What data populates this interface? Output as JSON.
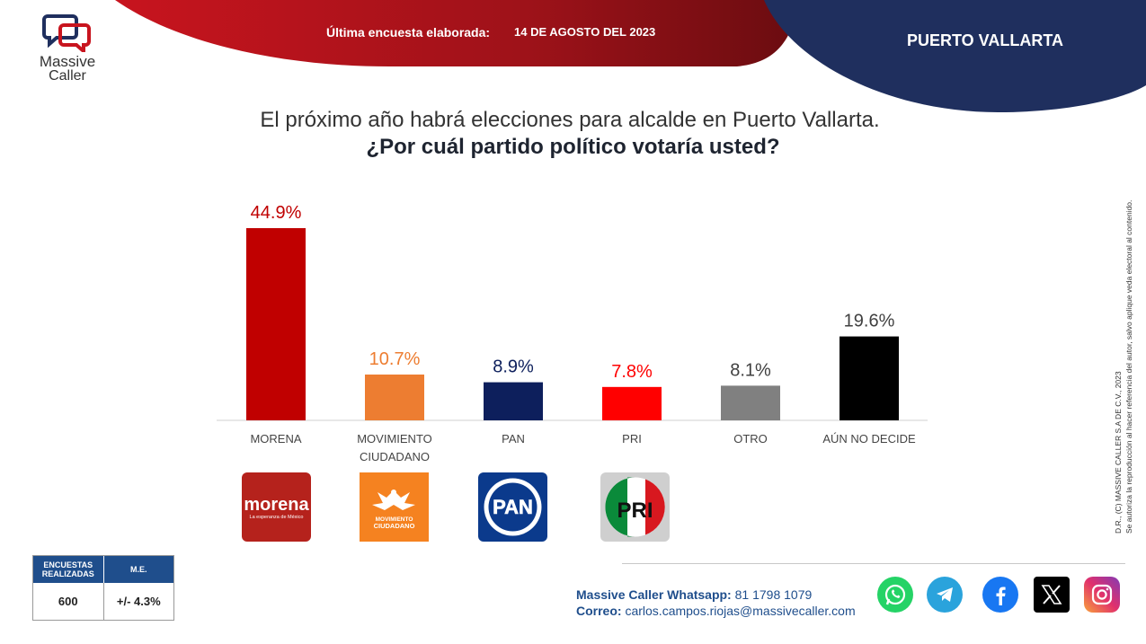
{
  "header": {
    "brand_line1": "Massive",
    "brand_line2": "Caller",
    "survey_label": "Última encuesta elaborada:",
    "survey_date": "14 DE AGOSTO DEL 2023",
    "city": "PUERTO VALLARTA",
    "colors": {
      "red": "#b4141c",
      "darkred": "#7a0e14",
      "navy": "#1f2f5e"
    }
  },
  "question": {
    "line1": "El próximo año habrá elecciones para alcalde en Puerto Vallarta.",
    "line2": "¿Por cuál partido político votaría usted?"
  },
  "chart_data": {
    "type": "bar",
    "categories": [
      "MORENA",
      "MOVIMIENTO CIUDADANO",
      "PAN",
      "PRI",
      "OTRO",
      "AÚN NO DECIDE"
    ],
    "category_lines": [
      [
        "MORENA"
      ],
      [
        "MOVIMIENTO",
        "CIUDADANO"
      ],
      [
        "PAN"
      ],
      [
        "PRI"
      ],
      [
        "OTRO"
      ],
      [
        "AÚN NO DECIDE"
      ]
    ],
    "values": [
      44.9,
      10.7,
      8.9,
      7.8,
      8.1,
      19.6
    ],
    "value_labels": [
      "44.9%",
      "10.7%",
      "8.9%",
      "7.8%",
      "8.1%",
      "19.6%"
    ],
    "colors": [
      "#c00000",
      "#ed7d31",
      "#0d1f5c",
      "#ff0000",
      "#808080",
      "#000000"
    ],
    "label_colors": [
      "#c00000",
      "#ed7d31",
      "#0d1f5c",
      "#ff0000",
      "#404040",
      "#404040"
    ],
    "ylim": [
      0,
      44.9
    ],
    "grid": false,
    "legend": "none"
  },
  "party_logos": [
    {
      "icon": "morena-logo",
      "name": "morena",
      "sub": "La esperanza de México",
      "color": "#b5221c"
    },
    {
      "icon": "movimiento-ciudadano-logo",
      "name": "MOVIMIENTO CIUDADANO",
      "color": "#f58220"
    },
    {
      "icon": "pan-logo",
      "name": "PAN",
      "color": "#0b3a8c"
    },
    {
      "icon": "pri-logo",
      "name": "PRI",
      "color": "#cccccc"
    }
  ],
  "stats": {
    "surveys_label": "ENCUESTAS REALIZADAS",
    "margin_label": "M.E.",
    "surveys_value": "600",
    "margin_value": "+/- 4.3%"
  },
  "contact": {
    "whatsapp_label": "Massive Caller Whatsapp:",
    "whatsapp_value": "81 1798 1079",
    "email_label": "Correo:",
    "email_value": "carlos.campos.riojas@massivecaller.com"
  },
  "social": [
    "whatsapp-icon",
    "telegram-icon",
    "facebook-icon",
    "x-icon",
    "instagram-icon"
  ],
  "disclaimer": {
    "line1": "D.R., (C) MASSIVE CALLER S.A DE C.V., 2023",
    "line2": "Se autoriza la reproducción al hacer referencia del autor, salvo aplique veda electoral al contenido."
  }
}
